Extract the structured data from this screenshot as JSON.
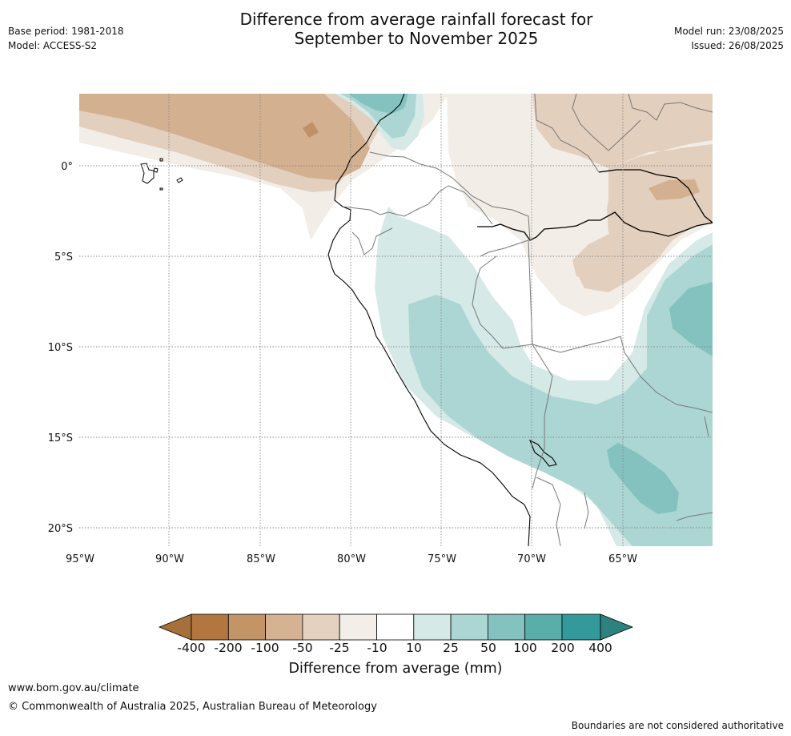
{
  "header": {
    "title_line1": "Difference from average rainfall forecast for",
    "title_line2": "September to November 2025",
    "base_period": "Base period: 1981-2018",
    "model": "Model: ACCESS-S2",
    "model_run": "Model run: 23/08/2025",
    "issued": "Issued: 26/08/2025"
  },
  "map": {
    "lat_labels": [
      "0°",
      "5°S",
      "10°S",
      "15°S",
      "20°S"
    ],
    "lon_labels": [
      "95°W",
      "90°W",
      "85°W",
      "80°W",
      "75°W",
      "70°W",
      "65°W"
    ],
    "colors": {
      "brown_100_200": "#bf9166",
      "brown_50_100": "#d3b08f",
      "brown_25_50": "#e3cfbd",
      "brown_10_25": "#f2ede7",
      "neutral": "#ffffff",
      "teal_10_25": "#d5e9e7",
      "teal_25_50": "#acd6d4",
      "teal_50_100": "#83c2bf",
      "coast": "#000000",
      "borders": "#777777",
      "grid": "#888888"
    }
  },
  "legend": {
    "title": "Difference from average (mm)",
    "ticks": [
      "-400",
      "-200",
      "-100",
      "-50",
      "-25",
      "-10",
      "10",
      "25",
      "50",
      "100",
      "200",
      "400"
    ],
    "colors": [
      "#a5703a",
      "#b37640",
      "#c29466",
      "#d5b292",
      "#e4d1c0",
      "#f3eee8",
      "#ffffff",
      "#d5e9e7",
      "#acd6d4",
      "#83c2bf",
      "#5aaeaa",
      "#33999a",
      "#2d8280"
    ]
  },
  "footer": {
    "url": "www.bom.gov.au/climate",
    "copyright": "© Commonwealth of Australia 2025, Australian Bureau of Meteorology",
    "disclaimer": "Boundaries are not considered authoritative"
  }
}
